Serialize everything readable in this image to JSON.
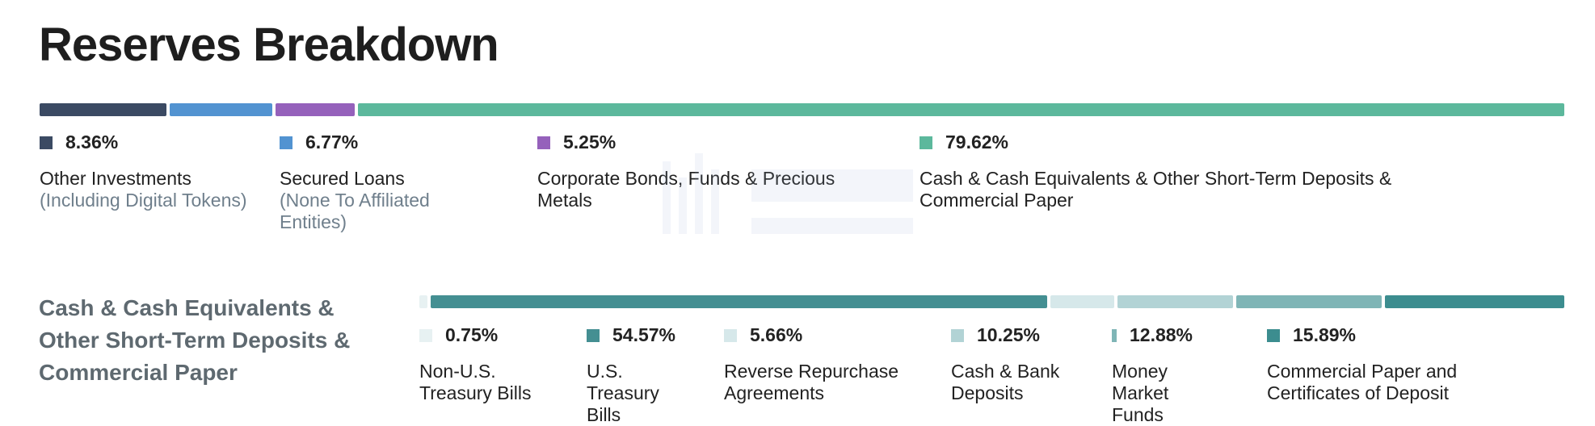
{
  "title": "Reserves Breakdown",
  "chart_data": [
    {
      "type": "bar",
      "stacked": true,
      "orientation": "horizontal",
      "series": [
        {
          "label": "Other Investments",
          "sublabel": "(Including Digital Tokens)",
          "value": 8.36,
          "pct_text": "8.36%",
          "color": "#3b4a63"
        },
        {
          "label": "Secured Loans",
          "sublabel": "(None To Affiliated Entities)",
          "value": 6.77,
          "pct_text": "6.77%",
          "color": "#5293d1"
        },
        {
          "label": "Corporate Bonds, Funds & Precious Metals",
          "sublabel": "",
          "value": 5.25,
          "pct_text": "5.25%",
          "color": "#9561bb"
        },
        {
          "label": "Cash & Cash Equivalents & Other Short-Term Deposits & Commercial Paper",
          "sublabel": "",
          "value": 79.62,
          "pct_text": "79.62%",
          "color": "#5cb89c"
        }
      ]
    },
    {
      "type": "bar",
      "stacked": true,
      "orientation": "horizontal",
      "title": "Cash & Cash Equivalents & Other Short-Term Deposits & Commercial Paper",
      "series": [
        {
          "label": "Non-U.S. Treasury Bills",
          "value": 0.75,
          "pct_text": "0.75%",
          "color": "#e7f1f2"
        },
        {
          "label": "U.S. Treasury Bills",
          "value": 54.57,
          "pct_text": "54.57%",
          "color": "#448f92"
        },
        {
          "label": "Reverse Repurchase Agreements",
          "value": 5.66,
          "pct_text": "5.66%",
          "color": "#d6e8ea"
        },
        {
          "label": "Cash & Bank Deposits",
          "value": 10.25,
          "pct_text": "10.25%",
          "color": "#b2d3d5"
        },
        {
          "label": "Money Market Funds",
          "value": 12.88,
          "pct_text": "12.88%",
          "color": "#7fb5b6"
        },
        {
          "label": "Commercial Paper and Certificates of Deposit",
          "value": 15.89,
          "pct_text": "15.89%",
          "color": "#3c8d8f"
        }
      ]
    }
  ]
}
